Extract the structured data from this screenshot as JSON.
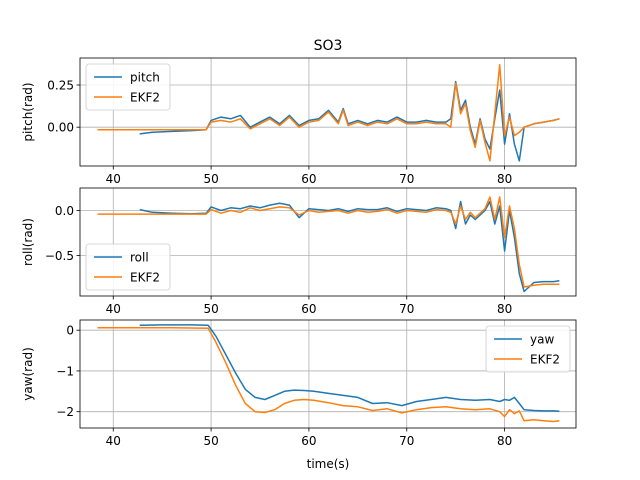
{
  "figure": {
    "title": "SO3",
    "xlabel": "time(s)"
  },
  "chart_data": [
    {
      "type": "line",
      "ylabel": "pitch(rad)",
      "xlim": [
        36.6,
        87.3
      ],
      "ylim": [
        -0.23,
        0.41
      ],
      "xticks": [
        40,
        50,
        60,
        70,
        80
      ],
      "yticks": [
        0.0,
        0.25
      ],
      "ytick_labels": [
        "0.00",
        "0.25"
      ],
      "grid": true,
      "legend": "upper-left",
      "series": [
        {
          "name": "pitch",
          "color": "#1f77b4",
          "x": [
            42.7,
            44,
            46,
            48,
            49.5,
            50,
            51,
            52,
            53,
            54,
            55,
            56,
            57,
            58,
            59,
            60,
            61,
            62,
            63,
            63.5,
            64,
            65,
            66,
            67,
            68,
            69,
            70,
            71,
            72,
            73,
            74,
            74.5,
            75,
            75.5,
            76,
            76.5,
            77,
            77.5,
            78,
            78.5,
            79,
            79.5,
            80,
            80.5,
            81,
            81.5,
            82,
            83,
            84,
            85,
            85.6
          ],
          "y": [
            -0.04,
            -0.03,
            -0.025,
            -0.02,
            -0.015,
            0.04,
            0.06,
            0.05,
            0.07,
            0.0,
            0.03,
            0.06,
            0.02,
            0.07,
            0.01,
            0.04,
            0.05,
            0.1,
            0.03,
            0.11,
            0.02,
            0.04,
            0.02,
            0.04,
            0.03,
            0.06,
            0.03,
            0.03,
            0.04,
            0.03,
            0.03,
            0.05,
            0.27,
            0.1,
            0.16,
            0.0,
            -0.1,
            0.05,
            -0.07,
            -0.13,
            0.05,
            0.22,
            -0.1,
            0.08,
            -0.1,
            -0.2,
            0.0,
            0.02,
            0.03,
            0.04,
            0.05
          ]
        },
        {
          "name": "EKF2",
          "color": "#ff7f0e",
          "x": [
            38.4,
            42,
            46,
            49.5,
            50,
            51,
            52,
            53,
            54,
            55,
            56,
            57,
            58,
            59,
            60,
            61,
            62,
            63,
            63.5,
            64,
            65,
            66,
            67,
            68,
            69,
            70,
            71,
            72,
            73,
            74,
            74.5,
            75,
            75.5,
            76,
            76.5,
            77,
            77.5,
            78,
            78.5,
            79,
            79.5,
            80,
            80.5,
            81,
            81.5,
            82,
            83,
            84,
            85,
            85.6
          ],
          "y": [
            -0.015,
            -0.015,
            -0.015,
            -0.015,
            0.03,
            0.04,
            0.03,
            0.05,
            -0.01,
            0.02,
            0.05,
            0.01,
            0.06,
            0.0,
            0.03,
            0.04,
            0.09,
            0.02,
            0.1,
            0.01,
            0.03,
            0.01,
            0.03,
            0.02,
            0.05,
            0.02,
            0.02,
            0.03,
            0.02,
            0.02,
            0.0,
            0.26,
            0.08,
            0.14,
            -0.02,
            -0.12,
            0.04,
            -0.09,
            -0.2,
            0.08,
            0.37,
            -0.05,
            0.06,
            -0.05,
            -0.03,
            0.0,
            0.02,
            0.03,
            0.04,
            0.05
          ]
        }
      ]
    },
    {
      "type": "line",
      "ylabel": "roll(rad)",
      "xlim": [
        36.6,
        87.3
      ],
      "ylim": [
        -0.95,
        0.25
      ],
      "xticks": [
        40,
        50,
        60,
        70,
        80
      ],
      "yticks": [
        0.0,
        -0.5
      ],
      "ytick_labels": [
        "0.0",
        "−0.5"
      ],
      "grid": true,
      "legend": "lower-left",
      "series": [
        {
          "name": "roll",
          "color": "#1f77b4",
          "x": [
            42.7,
            44,
            46,
            48,
            49.5,
            50,
            51,
            52,
            53,
            54,
            55,
            56,
            57,
            58,
            59,
            60,
            61,
            62,
            63,
            64,
            65,
            66,
            67,
            68,
            69,
            70,
            71,
            72,
            73,
            74,
            74.5,
            75,
            75.5,
            76,
            76.5,
            77,
            77.5,
            78,
            78.5,
            79,
            79.5,
            80,
            80.5,
            81,
            81.5,
            82,
            83,
            84,
            85,
            85.6
          ],
          "y": [
            0.01,
            -0.02,
            -0.03,
            -0.035,
            -0.03,
            0.04,
            0.0,
            0.03,
            0.02,
            0.05,
            0.03,
            0.06,
            0.08,
            0.06,
            -0.08,
            0.02,
            0.01,
            0.0,
            0.02,
            -0.01,
            0.02,
            0.01,
            0.01,
            0.03,
            -0.01,
            0.02,
            0.01,
            0.0,
            0.03,
            0.02,
            0.0,
            -0.2,
            0.1,
            -0.15,
            -0.05,
            -0.1,
            -0.05,
            0.0,
            0.1,
            -0.15,
            0.05,
            -0.45,
            0.0,
            -0.3,
            -0.7,
            -0.9,
            -0.8,
            -0.79,
            -0.79,
            -0.78
          ]
        },
        {
          "name": "EKF2",
          "color": "#ff7f0e",
          "x": [
            38.4,
            42,
            46,
            49.5,
            50,
            51,
            52,
            53,
            54,
            55,
            56,
            57,
            58,
            59,
            60,
            61,
            62,
            63,
            64,
            65,
            66,
            67,
            68,
            69,
            70,
            71,
            72,
            73,
            74,
            74.5,
            75,
            75.5,
            76,
            76.5,
            77,
            77.5,
            78,
            78.5,
            79,
            79.5,
            80,
            80.5,
            81,
            81.5,
            82,
            83,
            84,
            85,
            85.6
          ],
          "y": [
            -0.04,
            -0.04,
            -0.04,
            -0.04,
            0.01,
            -0.03,
            0.0,
            -0.02,
            0.03,
            0.0,
            0.02,
            0.04,
            0.03,
            -0.05,
            0.0,
            -0.02,
            -0.01,
            0.0,
            -0.03,
            0.0,
            -0.02,
            -0.01,
            0.01,
            -0.03,
            0.0,
            -0.01,
            -0.02,
            0.01,
            0.0,
            -0.02,
            -0.15,
            0.05,
            -0.1,
            -0.02,
            -0.08,
            -0.03,
            0.02,
            0.15,
            -0.1,
            0.15,
            -0.3,
            0.05,
            -0.2,
            -0.6,
            -0.85,
            -0.83,
            -0.82,
            -0.82,
            -0.82
          ]
        }
      ]
    },
    {
      "type": "line",
      "ylabel": "yaw(rad)",
      "xlim": [
        36.6,
        87.3
      ],
      "ylim": [
        -2.4,
        0.25
      ],
      "xticks": [
        40,
        50,
        60,
        70,
        80
      ],
      "yticks": [
        0,
        -1,
        -2
      ],
      "ytick_labels": [
        "0",
        "−1",
        "−2"
      ],
      "grid": true,
      "legend": "upper-right",
      "series": [
        {
          "name": "yaw",
          "color": "#1f77b4",
          "x": [
            42.7,
            45,
            48,
            49.7,
            50.5,
            51.5,
            52.5,
            53.5,
            54.5,
            55.5,
            56.5,
            57.5,
            58.5,
            59.5,
            60.5,
            62,
            63.5,
            65,
            66.5,
            68,
            69.5,
            71,
            72.5,
            74,
            75.5,
            77,
            78.5,
            79.5,
            80,
            80.5,
            81,
            81.5,
            82,
            83,
            84,
            85,
            85.6
          ],
          "y": [
            0.12,
            0.13,
            0.13,
            0.12,
            -0.15,
            -0.6,
            -1.05,
            -1.45,
            -1.65,
            -1.7,
            -1.6,
            -1.5,
            -1.47,
            -1.48,
            -1.5,
            -1.55,
            -1.6,
            -1.65,
            -1.8,
            -1.78,
            -1.85,
            -1.75,
            -1.7,
            -1.65,
            -1.7,
            -1.72,
            -1.7,
            -1.75,
            -1.7,
            -1.72,
            -1.65,
            -1.8,
            -1.95,
            -1.97,
            -1.98,
            -1.98,
            -1.99
          ]
        },
        {
          "name": "EKF2",
          "color": "#ff7f0e",
          "x": [
            38.4,
            42,
            46,
            49.7,
            50.5,
            51.5,
            52.5,
            53.5,
            54.5,
            55.5,
            56.5,
            57.5,
            58.5,
            59.5,
            60.5,
            62,
            63.5,
            65,
            66.5,
            68,
            69.5,
            71,
            72.5,
            74,
            75.5,
            77,
            78.5,
            79.5,
            80,
            80.5,
            81,
            81.5,
            82,
            83,
            84,
            85,
            85.6
          ],
          "y": [
            0.06,
            0.06,
            0.06,
            0.05,
            -0.3,
            -0.8,
            -1.35,
            -1.8,
            -2.0,
            -2.02,
            -1.95,
            -1.8,
            -1.72,
            -1.7,
            -1.72,
            -1.78,
            -1.85,
            -1.88,
            -1.97,
            -1.93,
            -2.03,
            -1.95,
            -1.9,
            -1.88,
            -1.93,
            -1.95,
            -1.93,
            -2.0,
            -2.12,
            -1.95,
            -2.05,
            -1.98,
            -2.22,
            -2.2,
            -2.22,
            -2.24,
            -2.22
          ]
        }
      ]
    }
  ]
}
